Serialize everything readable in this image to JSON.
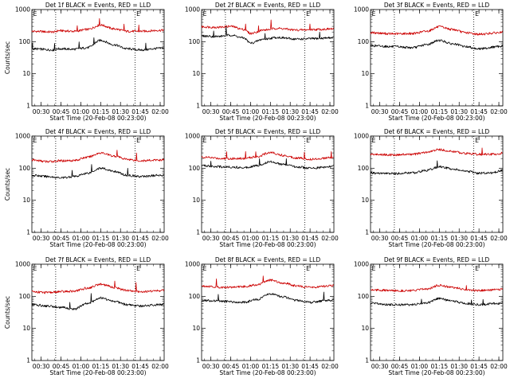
{
  "figure": {
    "background": "#ffffff"
  },
  "chart_data": [
    {
      "type": "line",
      "title": "Det 1f BLACK = Events, RED = LLD",
      "xlabel": "Start Time (20-Feb-08 00:23:00)",
      "ylabel": "Counts/sec",
      "xlim": [
        "00:23",
        "02:03"
      ],
      "ylim": [
        1,
        1000
      ],
      "yscale": "log",
      "xticks": [
        "00:30",
        "00:45",
        "01:00",
        "01:15",
        "01:30",
        "01:45",
        "02:00"
      ],
      "yticks": [
        "1",
        "10",
        "100",
        "1000"
      ],
      "vlines": [
        "00:41",
        "01:41"
      ],
      "markers": [
        {
          "text": "E",
          "x": "00:24"
        },
        {
          "text": "E",
          "x": "01:42"
        }
      ],
      "series": [
        {
          "color": "#cc0000",
          "x": [
            "00:23",
            "00:40",
            "00:43",
            "00:55",
            "01:05",
            "01:15",
            "01:25",
            "01:35",
            "01:45",
            "02:00",
            "02:03"
          ],
          "y": [
            210,
            200,
            220,
            210,
            240,
            330,
            250,
            210,
            210,
            225,
            230
          ]
        },
        {
          "color": "#000000",
          "x": [
            "00:23",
            "00:40",
            "00:43",
            "00:55",
            "01:05",
            "01:15",
            "01:25",
            "01:35",
            "01:45",
            "02:00",
            "02:03"
          ],
          "y": [
            60,
            55,
            60,
            58,
            65,
            110,
            80,
            60,
            55,
            62,
            65
          ]
        }
      ]
    },
    {
      "type": "line",
      "title": "Det 2f BLACK = Events, RED = LLD",
      "xlabel": "Start Time (20-Feb-08 00:23:00)",
      "ylabel": "",
      "xlim": [
        "00:23",
        "02:03"
      ],
      "ylim": [
        1,
        1000
      ],
      "yscale": "log",
      "xticks": [
        "00:30",
        "00:45",
        "01:00",
        "01:15",
        "01:30",
        "01:45",
        "02:00"
      ],
      "yticks": [
        "1",
        "10",
        "100",
        "1000"
      ],
      "vlines": [
        "00:41",
        "01:41"
      ],
      "markers": [
        {
          "text": "E",
          "x": "00:24"
        },
        {
          "text": "E",
          "x": "01:42"
        }
      ],
      "series": [
        {
          "color": "#cc0000",
          "x": [
            "00:23",
            "00:35",
            "00:45",
            "00:55",
            "01:00",
            "01:10",
            "01:20",
            "01:35",
            "01:50",
            "02:03"
          ],
          "y": [
            290,
            280,
            300,
            240,
            180,
            230,
            260,
            230,
            240,
            250
          ]
        },
        {
          "color": "#000000",
          "x": [
            "00:23",
            "00:35",
            "00:45",
            "00:55",
            "01:00",
            "01:10",
            "01:20",
            "01:35",
            "01:50",
            "02:03"
          ],
          "y": [
            150,
            145,
            160,
            130,
            90,
            120,
            135,
            120,
            125,
            135
          ]
        }
      ]
    },
    {
      "type": "line",
      "title": "Det 3f BLACK = Events, RED = LLD",
      "xlabel": "Start Time (20-Feb-08 00:23:00)",
      "ylabel": "",
      "xlim": [
        "00:23",
        "02:03"
      ],
      "ylim": [
        1,
        1000
      ],
      "yscale": "log",
      "xticks": [
        "00:30",
        "00:45",
        "01:00",
        "01:15",
        "01:30",
        "01:45",
        "02:00"
      ],
      "yticks": [
        "1",
        "10",
        "100",
        "1000"
      ],
      "vlines": [
        "00:41",
        "01:41"
      ],
      "markers": [
        {
          "text": "E",
          "x": "00:24"
        },
        {
          "text": "E",
          "x": "01:42"
        }
      ],
      "series": [
        {
          "color": "#cc0000",
          "x": [
            "00:23",
            "00:40",
            "00:55",
            "01:05",
            "01:15",
            "01:25",
            "01:35",
            "01:45",
            "02:00",
            "02:03"
          ],
          "y": [
            190,
            175,
            180,
            210,
            290,
            240,
            190,
            170,
            190,
            200
          ]
        },
        {
          "color": "#000000",
          "x": [
            "00:23",
            "00:40",
            "00:55",
            "01:05",
            "01:15",
            "01:25",
            "01:35",
            "01:45",
            "02:00",
            "02:03"
          ],
          "y": [
            75,
            70,
            65,
            80,
            110,
            85,
            70,
            60,
            70,
            75
          ]
        }
      ]
    },
    {
      "type": "line",
      "title": "Det 4f BLACK = Events, RED = LLD",
      "xlabel": "Start Time (20-Feb-08 00:23:00)",
      "ylabel": "Counts/sec",
      "xlim": [
        "00:23",
        "02:03"
      ],
      "ylim": [
        1,
        1000
      ],
      "yscale": "log",
      "xticks": [
        "00:30",
        "00:45",
        "01:00",
        "01:15",
        "01:30",
        "01:45",
        "02:00"
      ],
      "yticks": [
        "1",
        "10",
        "100",
        "1000"
      ],
      "vlines": [
        "00:41",
        "01:41"
      ],
      "markers": [
        {
          "text": "E",
          "x": "00:24"
        },
        {
          "text": "E",
          "x": "01:42"
        }
      ],
      "series": [
        {
          "color": "#cc0000",
          "x": [
            "00:23",
            "00:35",
            "00:45",
            "00:55",
            "01:05",
            "01:15",
            "01:25",
            "01:35",
            "01:45",
            "02:00",
            "02:03"
          ],
          "y": [
            180,
            160,
            170,
            175,
            220,
            300,
            240,
            190,
            170,
            180,
            185
          ]
        },
        {
          "color": "#000000",
          "x": [
            "00:23",
            "00:35",
            "00:45",
            "00:55",
            "01:05",
            "01:15",
            "01:25",
            "01:35",
            "01:45",
            "02:00",
            "02:03"
          ],
          "y": [
            60,
            55,
            50,
            55,
            70,
            100,
            80,
            60,
            55,
            60,
            62
          ]
        }
      ]
    },
    {
      "type": "line",
      "title": "Det 5f BLACK = Events, RED = LLD",
      "xlabel": "Start Time (20-Feb-08 00:23:00)",
      "ylabel": "",
      "xlim": [
        "00:23",
        "02:03"
      ],
      "ylim": [
        1,
        1000
      ],
      "yscale": "log",
      "xticks": [
        "00:30",
        "00:45",
        "01:00",
        "01:15",
        "01:30",
        "01:45",
        "02:00"
      ],
      "yticks": [
        "1",
        "10",
        "100",
        "1000"
      ],
      "vlines": [
        "00:41",
        "01:41"
      ],
      "markers": [
        {
          "text": "E",
          "x": "00:24"
        },
        {
          "text": "E",
          "x": "01:42"
        }
      ],
      "series": [
        {
          "color": "#cc0000",
          "x": [
            "00:23",
            "00:40",
            "00:55",
            "01:05",
            "01:15",
            "01:25",
            "01:35",
            "01:45",
            "02:00",
            "02:03"
          ],
          "y": [
            220,
            200,
            200,
            230,
            310,
            250,
            210,
            190,
            210,
            220
          ]
        },
        {
          "color": "#000000",
          "x": [
            "00:23",
            "00:40",
            "00:55",
            "01:05",
            "01:15",
            "01:25",
            "01:35",
            "01:45",
            "02:00",
            "02:03"
          ],
          "y": [
            120,
            110,
            105,
            120,
            160,
            130,
            110,
            100,
            110,
            120
          ]
        }
      ]
    },
    {
      "type": "line",
      "title": "Det 6f BLACK = Events, RED = LLD",
      "xlabel": "Start Time (20-Feb-08 00:23:00)",
      "ylabel": "",
      "xlim": [
        "00:23",
        "02:03"
      ],
      "ylim": [
        1,
        1000
      ],
      "yscale": "log",
      "xticks": [
        "00:30",
        "00:45",
        "01:00",
        "01:15",
        "01:30",
        "01:45",
        "02:00"
      ],
      "yticks": [
        "1",
        "10",
        "100",
        "1000"
      ],
      "vlines": [
        "00:41",
        "01:41"
      ],
      "markers": [
        {
          "text": "E",
          "x": "00:24"
        },
        {
          "text": "E",
          "x": "01:42"
        }
      ],
      "series": [
        {
          "color": "#cc0000",
          "x": [
            "00:23",
            "00:40",
            "00:55",
            "01:05",
            "01:15",
            "01:25",
            "01:35",
            "01:45",
            "01:55",
            "02:00",
            "02:03"
          ],
          "y": [
            270,
            260,
            270,
            310,
            380,
            330,
            290,
            270,
            270,
            280,
            300
          ]
        },
        {
          "color": "#000000",
          "x": [
            "00:23",
            "00:40",
            "00:55",
            "01:05",
            "01:15",
            "01:25",
            "01:35",
            "01:45",
            "01:55",
            "02:00",
            "02:03"
          ],
          "y": [
            70,
            68,
            72,
            85,
            110,
            95,
            80,
            70,
            72,
            80,
            90
          ]
        }
      ]
    },
    {
      "type": "line",
      "title": "Det 7f BLACK = Events, RED = LLD",
      "xlabel": "Start Time (20-Feb-08 00:23:00)",
      "ylabel": "Counts/sec",
      "xlim": [
        "00:23",
        "02:03"
      ],
      "ylim": [
        1,
        1000
      ],
      "yscale": "log",
      "xticks": [
        "00:30",
        "00:45",
        "01:00",
        "01:15",
        "01:30",
        "01:45",
        "02:00"
      ],
      "yticks": [
        "1",
        "10",
        "100",
        "1000"
      ],
      "vlines": [
        "00:41",
        "01:41"
      ],
      "markers": [
        {
          "text": "E",
          "x": "00:24"
        },
        {
          "text": "E",
          "x": "01:42"
        }
      ],
      "series": [
        {
          "color": "#cc0000",
          "x": [
            "00:23",
            "00:35",
            "00:45",
            "00:55",
            "01:05",
            "01:15",
            "01:25",
            "01:35",
            "01:45",
            "02:00",
            "02:03"
          ],
          "y": [
            140,
            130,
            140,
            145,
            180,
            240,
            190,
            150,
            140,
            150,
            155
          ]
        },
        {
          "color": "#000000",
          "x": [
            "00:23",
            "00:35",
            "00:45",
            "00:55",
            "01:05",
            "01:15",
            "01:25",
            "01:35",
            "01:45",
            "02:00",
            "02:03"
          ],
          "y": [
            55,
            50,
            45,
            40,
            60,
            90,
            70,
            55,
            50,
            55,
            58
          ]
        }
      ]
    },
    {
      "type": "line",
      "title": "Det 8f BLACK = Events, RED = LLD",
      "xlabel": "Start Time (20-Feb-08 00:23:00)",
      "ylabel": "",
      "xlim": [
        "00:23",
        "02:03"
      ],
      "ylim": [
        1,
        1000
      ],
      "yscale": "log",
      "xticks": [
        "00:30",
        "00:45",
        "01:00",
        "01:15",
        "01:30",
        "01:45",
        "02:00"
      ],
      "yticks": [
        "1",
        "10",
        "100",
        "1000"
      ],
      "vlines": [
        "00:41",
        "01:41"
      ],
      "markers": [
        {
          "text": "E",
          "x": "00:24"
        },
        {
          "text": "E",
          "x": "01:42"
        }
      ],
      "series": [
        {
          "color": "#cc0000",
          "x": [
            "00:23",
            "00:40",
            "00:55",
            "01:05",
            "01:15",
            "01:25",
            "01:35",
            "01:45",
            "02:00",
            "02:03"
          ],
          "y": [
            210,
            190,
            200,
            230,
            320,
            260,
            210,
            190,
            210,
            220
          ]
        },
        {
          "color": "#000000",
          "x": [
            "00:23",
            "00:40",
            "00:55",
            "01:05",
            "01:15",
            "01:25",
            "01:35",
            "01:45",
            "02:00",
            "02:03"
          ],
          "y": [
            75,
            70,
            65,
            80,
            120,
            95,
            75,
            65,
            75,
            80
          ]
        }
      ]
    },
    {
      "type": "line",
      "title": "Det 9f BLACK = Events, RED = LLD",
      "xlabel": "Start Time (20-Feb-08 00:23:00)",
      "ylabel": "",
      "xlim": [
        "00:23",
        "02:03"
      ],
      "ylim": [
        1,
        1000
      ],
      "yscale": "log",
      "xticks": [
        "00:30",
        "00:45",
        "01:00",
        "01:15",
        "01:30",
        "01:45",
        "02:00"
      ],
      "yticks": [
        "1",
        "10",
        "100",
        "1000"
      ],
      "vlines": [
        "00:41",
        "01:41"
      ],
      "markers": [
        {
          "text": "E",
          "x": "00:24"
        },
        {
          "text": "E",
          "x": "01:42"
        }
      ],
      "series": [
        {
          "color": "#cc0000",
          "x": [
            "00:23",
            "00:40",
            "00:55",
            "01:05",
            "01:15",
            "01:25",
            "01:35",
            "01:45",
            "02:00",
            "02:03"
          ],
          "y": [
            160,
            150,
            150,
            170,
            220,
            190,
            160,
            150,
            160,
            165
          ]
        },
        {
          "color": "#000000",
          "x": [
            "00:23",
            "00:40",
            "00:55",
            "01:05",
            "01:15",
            "01:25",
            "01:35",
            "01:45",
            "02:00",
            "02:03"
          ],
          "y": [
            60,
            55,
            55,
            62,
            85,
            70,
            60,
            55,
            60,
            62
          ]
        }
      ]
    }
  ]
}
